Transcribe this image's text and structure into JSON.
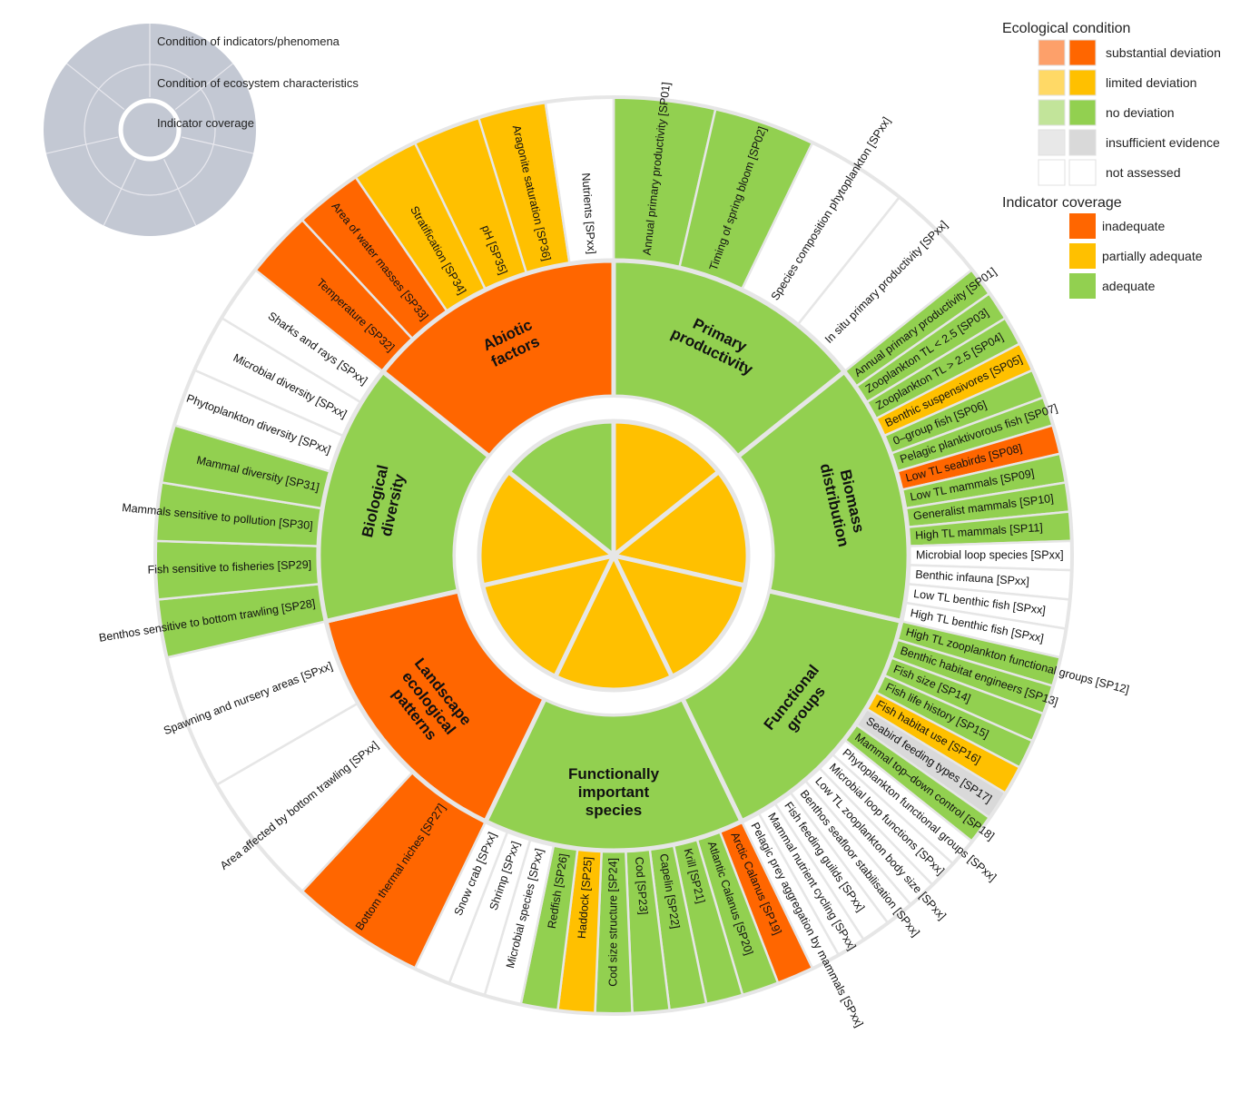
{
  "colors": {
    "outline": "#e6e6e6",
    "substantial_deviation_light": "#fda06a",
    "substantial_deviation": "#ff6600",
    "limited_deviation_light": "#ffd966",
    "limited_deviation": "#ffc000",
    "no_deviation_light": "#c2e49a",
    "no_deviation": "#92d050",
    "insufficient_light": "#e8e8e8",
    "insufficient": "#d9d9d9",
    "not_assessed": "#ffffff",
    "mini_fill": "#c3c8d3"
  },
  "mini_diagram": {
    "labels": [
      "Condition of indicators/phenomena",
      "Condition of ecosystem characteristics",
      "Indicator coverage"
    ]
  },
  "legend": {
    "condition_title": "Ecological condition",
    "condition_items": [
      {
        "label": "substantial deviation",
        "light": "#fda06a",
        "dark": "#ff6600"
      },
      {
        "label": "limited deviation",
        "light": "#ffd966",
        "dark": "#ffc000"
      },
      {
        "label": "no deviation",
        "light": "#c2e49a",
        "dark": "#92d050"
      },
      {
        "label": "insufficient evidence",
        "light": "#e8e8e8",
        "dark": "#d9d9d9"
      },
      {
        "label": "not assessed",
        "light": "#ffffff",
        "dark": "#ffffff"
      }
    ],
    "coverage_title": "Indicator coverage",
    "coverage_items": [
      {
        "label": "inadequate",
        "color": "#ff6600"
      },
      {
        "label": "partially adequate",
        "color": "#ffc000"
      },
      {
        "label": "adequate",
        "color": "#92d050"
      }
    ]
  },
  "chart_data": {
    "type": "sunburst",
    "categories": [
      {
        "name": "Primary productivity",
        "condition": "no deviation",
        "coverage": "partially adequate",
        "indicators": [
          {
            "label": "Annual primary productivity [SP01]",
            "condition": "no deviation"
          },
          {
            "label": "Timing of spring bloom [SP02]",
            "condition": "no deviation"
          },
          {
            "label": "Species composition phytoplankton [SPxx]",
            "condition": "not assessed"
          },
          {
            "label": "In situ primary productivity [SPxx]",
            "condition": "not assessed"
          }
        ]
      },
      {
        "name": "Biomass distribution",
        "condition": "no deviation",
        "coverage": "partially adequate",
        "indicators": [
          {
            "label": "Annual primary productivity [SP01]",
            "condition": "no deviation"
          },
          {
            "label": "Zooplankton TL < 2.5 [SP03]",
            "condition": "no deviation"
          },
          {
            "label": "Zooplankton TL > 2.5 [SP04]",
            "condition": "no deviation"
          },
          {
            "label": "Benthic suspensivores [SP05]",
            "condition": "limited deviation"
          },
          {
            "label": "0–group fish [SP06]",
            "condition": "no deviation"
          },
          {
            "label": "Pelagic planktivorous fish [SP07]",
            "condition": "no deviation"
          },
          {
            "label": "Low TL seabirds [SP08]",
            "condition": "substantial deviation"
          },
          {
            "label": "Low TL mammals [SP09]",
            "condition": "no deviation"
          },
          {
            "label": "Generalist mammals [SP10]",
            "condition": "no deviation"
          },
          {
            "label": "High TL mammals [SP11]",
            "condition": "no deviation"
          },
          {
            "label": "Microbial loop species [SPxx]",
            "condition": "not assessed"
          },
          {
            "label": "Benthic infauna [SPxx]",
            "condition": "not assessed"
          },
          {
            "label": "Low TL benthic fish [SPxx]",
            "condition": "not assessed"
          },
          {
            "label": "High TL benthic fish [SPxx]",
            "condition": "not assessed"
          }
        ]
      },
      {
        "name": "Functional groups",
        "condition": "no deviation",
        "coverage": "partially adequate",
        "indicators": [
          {
            "label": "High TL zooplankton functional groups [SP12]",
            "condition": "no deviation"
          },
          {
            "label": "Benthic habitat engineers [SP13]",
            "condition": "no deviation"
          },
          {
            "label": "Fish size [SP14]",
            "condition": "no deviation"
          },
          {
            "label": "Fish life history [SP15]",
            "condition": "no deviation"
          },
          {
            "label": "Fish habitat use [SP16]",
            "condition": "limited deviation"
          },
          {
            "label": "Seabird feeding types [SP17]",
            "condition": "insufficient evidence"
          },
          {
            "label": "Mammal top–down control [SP18]",
            "condition": "no deviation"
          },
          {
            "label": "Phytoplankton functional groups [SPxx]",
            "condition": "not assessed"
          },
          {
            "label": "Microbial loop functions [SPxx]",
            "condition": "not assessed"
          },
          {
            "label": "Low TL zooplankton body size [SPxx]",
            "condition": "not assessed"
          },
          {
            "label": "Benthos seafloor stabilisation [SPxx]",
            "condition": "not assessed"
          },
          {
            "label": "Fish feeding guilds [SPxx]",
            "condition": "not assessed"
          },
          {
            "label": "Mammal nutrient cycling [SPxx]",
            "condition": "not assessed"
          },
          {
            "label": "Pelagic prey aggregation by mammals [SPxx]",
            "condition": "not assessed"
          }
        ]
      },
      {
        "name": "Functionally important species",
        "condition": "no deviation",
        "coverage": "partially adequate",
        "indicators": [
          {
            "label": "Arctic Calanus [SP19]",
            "condition": "substantial deviation"
          },
          {
            "label": "Atlantic Calanus [SP20]",
            "condition": "no deviation"
          },
          {
            "label": "Krill [SP21]",
            "condition": "no deviation"
          },
          {
            "label": "Capelin [SP22]",
            "condition": "no deviation"
          },
          {
            "label": "Cod [SP23]",
            "condition": "no deviation"
          },
          {
            "label": "Cod size structure [SP24]",
            "condition": "no deviation"
          },
          {
            "label": "Haddock [SP25]",
            "condition": "limited deviation"
          },
          {
            "label": "Redfish [SP26]",
            "condition": "no deviation"
          },
          {
            "label": "Microbial species [SPxx]",
            "condition": "not assessed"
          },
          {
            "label": "Shrimp [SPxx]",
            "condition": "not assessed"
          },
          {
            "label": "Snow crab [SPxx]",
            "condition": "not assessed"
          }
        ]
      },
      {
        "name": "Landscape ecological patterns",
        "condition": "substantial deviation",
        "coverage": "partially adequate",
        "indicators": [
          {
            "label": "Bottom thermal niches [SP27]",
            "condition": "substantial deviation"
          },
          {
            "label": "Area affected by bottom trawling [SPxx]",
            "condition": "not assessed"
          },
          {
            "label": "Spawning and nursery areas [SPxx]",
            "condition": "not assessed"
          }
        ]
      },
      {
        "name": "Biological diversity",
        "condition": "no deviation",
        "coverage": "partially adequate",
        "indicators": [
          {
            "label": "Benthos sensitive to bottom trawling [SP28]",
            "condition": "no deviation"
          },
          {
            "label": "Fish sensitive to fisheries [SP29]",
            "condition": "no deviation"
          },
          {
            "label": "Mammals sensitive to pollution [SP30]",
            "condition": "no deviation"
          },
          {
            "label": "Mammal diversity [SP31]",
            "condition": "no deviation"
          },
          {
            "label": "Phytoplankton diversity [SPxx]",
            "condition": "not assessed"
          },
          {
            "label": "Microbial diversity [SPxx]",
            "condition": "not assessed"
          },
          {
            "label": "Sharks and rays [SPxx]",
            "condition": "not assessed"
          }
        ]
      },
      {
        "name": "Abiotic factors",
        "condition": "substantial deviation",
        "coverage": "adequate",
        "indicators": [
          {
            "label": "Temperature [SP32]",
            "condition": "substantial deviation"
          },
          {
            "label": "Area of water masses [SP33]",
            "condition": "substantial deviation"
          },
          {
            "label": "Stratification [SP34]",
            "condition": "limited deviation"
          },
          {
            "label": "pH [SP35]",
            "condition": "limited deviation"
          },
          {
            "label": "Aragonite saturation [SP36]",
            "condition": "limited deviation"
          },
          {
            "label": "Nutrients [SPxx]",
            "condition": "not assessed"
          }
        ]
      }
    ]
  }
}
